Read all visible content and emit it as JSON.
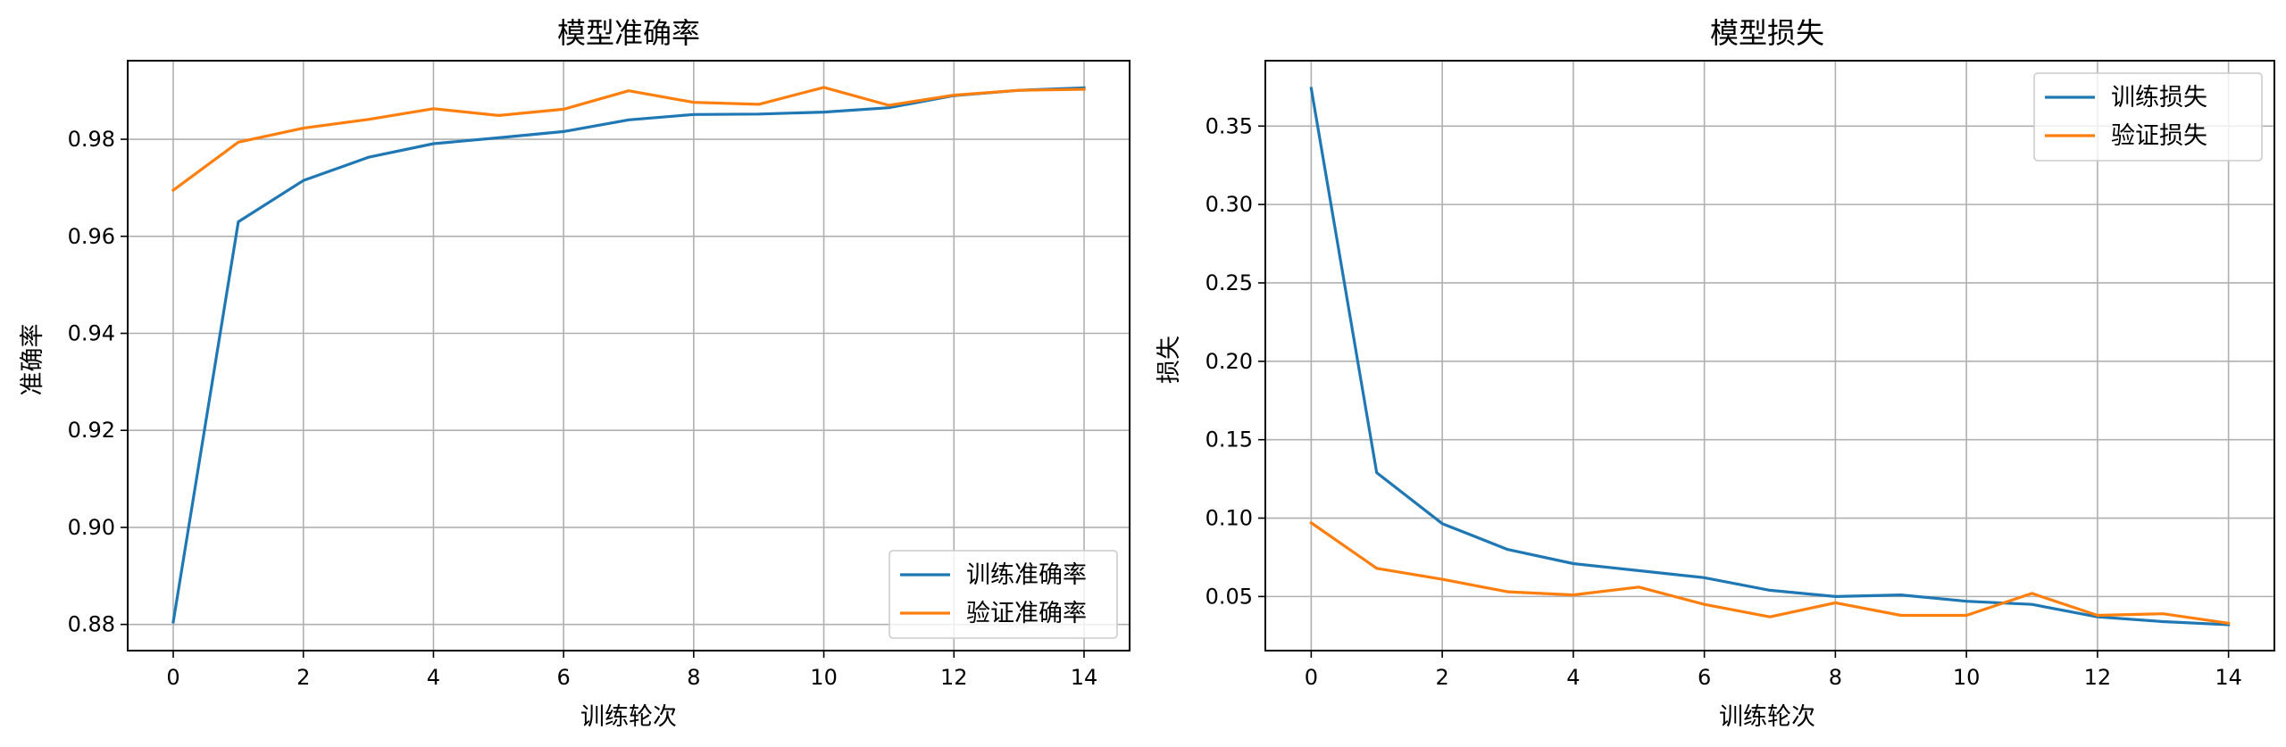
{
  "chart_data": [
    {
      "type": "line",
      "title": "模型准确率",
      "xlabel": "训练轮次",
      "ylabel": "准确率",
      "x": [
        0,
        1,
        2,
        3,
        4,
        5,
        6,
        7,
        8,
        9,
        10,
        11,
        12,
        13,
        14
      ],
      "xticks": [
        0,
        2,
        4,
        6,
        8,
        10,
        12,
        14
      ],
      "xtick_labels": [
        "0",
        "2",
        "4",
        "6",
        "8",
        "10",
        "12",
        "14"
      ],
      "yticks": [
        0.88,
        0.9,
        0.92,
        0.94,
        0.96,
        0.98
      ],
      "ytick_labels": [
        "0.88",
        "0.90",
        "0.92",
        "0.94",
        "0.96",
        "0.98"
      ],
      "xlim": [
        -0.7,
        14.7
      ],
      "ylim": [
        0.8746,
        0.9962
      ],
      "grid": true,
      "legend_position": "lower-right",
      "series": [
        {
          "name": "训练准确率",
          "color": "#1f77b4",
          "values": [
            0.8805,
            0.963,
            0.9715,
            0.9763,
            0.9791,
            0.9803,
            0.9816,
            0.984,
            0.9851,
            0.9852,
            0.9856,
            0.9865,
            0.989,
            0.9901,
            0.9906
          ]
        },
        {
          "name": "验证准确率",
          "color": "#ff7f0e",
          "values": [
            0.9695,
            0.9794,
            0.9823,
            0.9841,
            0.9863,
            0.9849,
            0.9862,
            0.99,
            0.9876,
            0.9872,
            0.9907,
            0.987,
            0.9891,
            0.9901,
            0.9903
          ]
        }
      ]
    },
    {
      "type": "line",
      "title": "模型损失",
      "xlabel": "训练轮次",
      "ylabel": "损失",
      "x": [
        0,
        1,
        2,
        3,
        4,
        5,
        6,
        7,
        8,
        9,
        10,
        11,
        12,
        13,
        14
      ],
      "xticks": [
        0,
        2,
        4,
        6,
        8,
        10,
        12,
        14
      ],
      "xtick_labels": [
        "0",
        "2",
        "4",
        "6",
        "8",
        "10",
        "12",
        "14"
      ],
      "yticks": [
        0.05,
        0.1,
        0.15,
        0.2,
        0.25,
        0.3,
        0.35
      ],
      "ytick_labels": [
        "0.05",
        "0.10",
        "0.15",
        "0.20",
        "0.25",
        "0.30",
        "0.35"
      ],
      "xlim": [
        -0.7,
        14.7
      ],
      "ylim": [
        0.0155,
        0.3917
      ],
      "grid": true,
      "legend_position": "upper-right",
      "series": [
        {
          "name": "训练损失",
          "color": "#1f77b4",
          "values": [
            0.374,
            0.129,
            0.0965,
            0.08,
            0.071,
            0.0665,
            0.062,
            0.054,
            0.05,
            0.051,
            0.047,
            0.045,
            0.037,
            0.034,
            0.032
          ]
        },
        {
          "name": "验证损失",
          "color": "#ff7f0e",
          "values": [
            0.097,
            0.068,
            0.061,
            0.053,
            0.051,
            0.056,
            0.045,
            0.037,
            0.046,
            0.038,
            0.038,
            0.052,
            0.038,
            0.039,
            0.033
          ]
        }
      ]
    }
  ]
}
